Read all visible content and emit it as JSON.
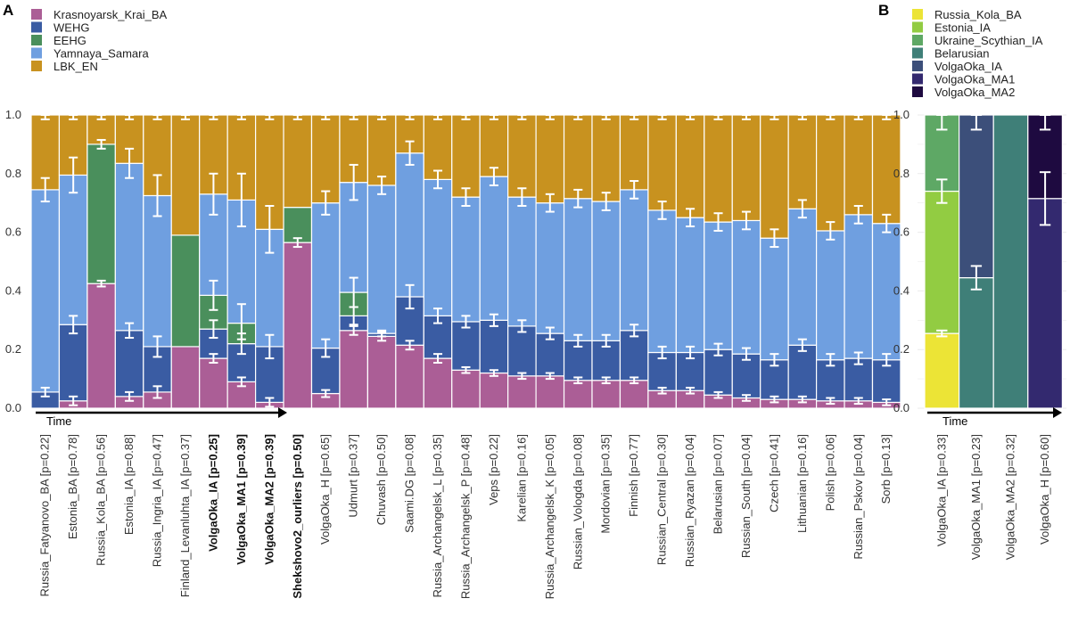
{
  "colors": {
    "Krasnoyarsk_Krai_BA": "#ab5e96",
    "WEHG": "#3a5ca3",
    "EEHG": "#4a8f5c",
    "Yamnaya_Samara": "#6f9fe0",
    "LBK_EN": "#c8921f",
    "Russia_Kola_BA": "#ece436",
    "Estonia_IA": "#92cc42",
    "Ukraine_Scythian_IA": "#5ea865",
    "Belarusian": "#3f7f78",
    "VolgaOka_IA": "#3c4f7a",
    "VolgaOka_MA1": "#33296f",
    "VolgaOka_MA2": "#1e0a40",
    "error_bar": "#ffffff",
    "grid": "#ebebeb"
  },
  "chart_data": [
    {
      "type": "bar",
      "panel_label": "A",
      "stacked": true,
      "ylim": [
        0,
        1
      ],
      "yticks": [
        "0.0",
        "0.2",
        "0.4",
        "0.6",
        "0.8",
        "1.0"
      ],
      "time_label": "Time",
      "legend": [
        "Krasnoyarsk_Krai_BA",
        "WEHG",
        "EEHG",
        "Yamnaya_Samara",
        "LBK_EN"
      ],
      "categories": [
        "Russia_Fatyanovo_BA [p=0.22]",
        "Estonia_BA [p=0.78]",
        "Russia_Kola_BA [p=0.56]",
        "Estonia_IA [p=0.88]",
        "Russia_Ingria_IA [p=0.47]",
        "Finland_Levanluhta_IA [p=0.37]",
        "VolgaOka_IA [p=0.25]",
        "VolgaOka_MA1 [p=0.39]",
        "VolgaOka_MA2 [p=0.39]",
        "Shekshovo2_ourliers [p=0.50]",
        "VolgaOka_H [p=0.65]",
        "Udmurt [p=0.37]",
        "Chuvash [p=0.50]",
        "Saami.DG [p=0.08]",
        "Russia_Archangelsk_L [p=0.35]",
        "Russia_Archangelsk_P [p=0.48]",
        "Veps [p=0.22]",
        "Karelian [p=0.16]",
        "Russia_Archangelsk_K [p=0.05]",
        "Russian_Vologda [p=0.08]",
        "Mordovian [p=0.35]",
        "Finnish [p=0.77]",
        "Russian_Central [p=0.30]",
        "Russian_Ryazan [p=0.04]",
        "Belarusian [p=0.07]",
        "Russian_South [p=0.04]",
        "Czech [p=0.41]",
        "Lithuanian [p=0.16]",
        "Polish [p=0.06]",
        "Russian_Pskov [p=0.04]",
        "Sorb [p=0.13]"
      ],
      "bold_categories": [
        6,
        7,
        8,
        9
      ],
      "series": [
        {
          "name": "Krasnoyarsk_Krai_BA",
          "values": [
            0,
            0.025,
            0.425,
            0.04,
            0.055,
            0.21,
            0.17,
            0.09,
            0.02,
            0.565,
            0.05,
            0.265,
            0.245,
            0.215,
            0.17,
            0.13,
            0.12,
            0.11,
            0.11,
            0.095,
            0.095,
            0.095,
            0.06,
            0.06,
            0.045,
            0.035,
            0.03,
            0.03,
            0.025,
            0.025,
            0.02
          ]
        },
        {
          "name": "WEHG",
          "values": [
            0.055,
            0.26,
            0,
            0.225,
            0.155,
            0,
            0.1,
            0.13,
            0.19,
            0,
            0.155,
            0.05,
            0.01,
            0.165,
            0.145,
            0.165,
            0.18,
            0.17,
            0.145,
            0.135,
            0.135,
            0.17,
            0.13,
            0.13,
            0.155,
            0.15,
            0.135,
            0.185,
            0.14,
            0.145,
            0.145
          ]
        },
        {
          "name": "EEHG",
          "values": [
            0,
            0,
            0.475,
            0,
            0,
            0.38,
            0.115,
            0.07,
            0,
            0.12,
            0,
            0.08,
            0,
            0,
            0,
            0,
            0,
            0,
            0,
            0,
            0,
            0,
            0,
            0,
            0,
            0,
            0,
            0,
            0,
            0,
            0
          ]
        },
        {
          "name": "Yamnaya_Samara",
          "values": [
            0.69,
            0.51,
            0,
            0.57,
            0.515,
            0,
            0.345,
            0.42,
            0.4,
            0,
            0.495,
            0.375,
            0.505,
            0.49,
            0.465,
            0.425,
            0.49,
            0.44,
            0.445,
            0.485,
            0.475,
            0.48,
            0.485,
            0.46,
            0.435,
            0.455,
            0.415,
            0.465,
            0.44,
            0.49,
            0.465
          ]
        },
        {
          "name": "LBK_EN",
          "values": [
            0.255,
            0.205,
            0.1,
            0.165,
            0.275,
            0.41,
            0.27,
            0.29,
            0.39,
            0.315,
            0.3,
            0.23,
            0.24,
            0.13,
            0.22,
            0.28,
            0.21,
            0.28,
            0.3,
            0.285,
            0.295,
            0.255,
            0.325,
            0.35,
            0.365,
            0.36,
            0.42,
            0.32,
            0.395,
            0.34,
            0.37
          ]
        }
      ]
    },
    {
      "type": "bar",
      "panel_label": "B",
      "stacked": true,
      "ylim": [
        0,
        1
      ],
      "yticks": [
        "0.0",
        "0.2",
        "0.4",
        "0.6",
        "0.8",
        "1.0"
      ],
      "time_label": "Time",
      "legend": [
        "Russia_Kola_BA",
        "Estonia_IA",
        "Ukraine_Scythian_IA",
        "Belarusian",
        "VolgaOka_IA",
        "VolgaOka_MA1",
        "VolgaOka_MA2"
      ],
      "categories": [
        "VolgaOka_IA [p=0.33]",
        "VolgaOka_MA1 [p=0.23]",
        "VolgaOka_MA2 [p=0.32]",
        "VolgaOka_H [p=0.60]"
      ],
      "series": [
        {
          "name": "Russia_Kola_BA",
          "values": [
            0.255,
            0,
            0,
            0
          ]
        },
        {
          "name": "Estonia_IA",
          "values": [
            0.485,
            0,
            0,
            0
          ]
        },
        {
          "name": "Ukraine_Scythian_IA",
          "values": [
            0.26,
            0,
            0,
            0
          ]
        },
        {
          "name": "Belarusian",
          "values": [
            0,
            0.445,
            1.0,
            0
          ]
        },
        {
          "name": "VolgaOka_IA",
          "values": [
            0,
            0.555,
            0,
            0
          ]
        },
        {
          "name": "VolgaOka_MA1",
          "values": [
            0,
            0,
            0,
            0.715
          ]
        },
        {
          "name": "VolgaOka_MA2",
          "values": [
            0,
            0,
            0,
            0.285
          ]
        }
      ]
    }
  ]
}
